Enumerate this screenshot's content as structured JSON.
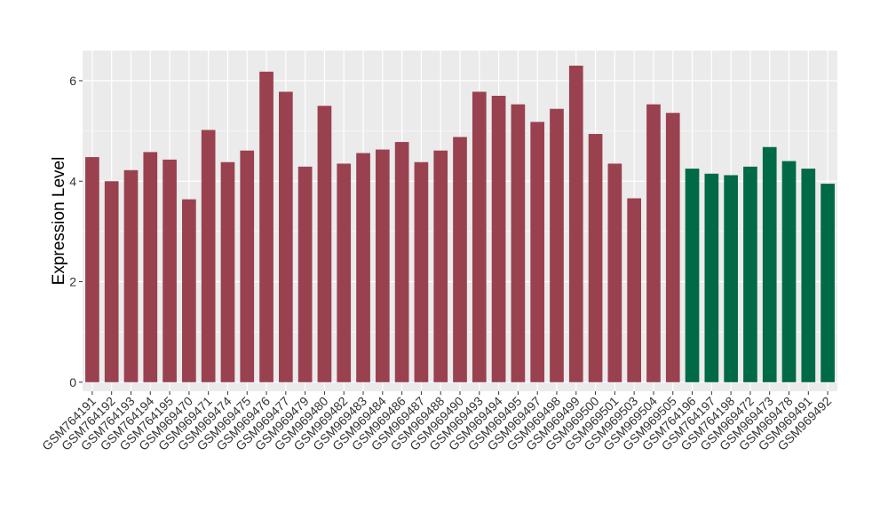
{
  "chart_data": {
    "type": "bar",
    "title": "",
    "xlabel": "",
    "ylabel": "Expression Level",
    "ylim": [
      -0.18,
      6.6
    ],
    "yticks": [
      0,
      2,
      4,
      6
    ],
    "grid": true,
    "legend": "none",
    "colors": {
      "series_a": "#9A4150",
      "series_b": "#006A46",
      "panel": "#EBEBEB",
      "gridline": "#FFFFFF"
    },
    "categories": [
      "GSM764191",
      "GSM764192",
      "GSM764193",
      "GSM764194",
      "GSM764195",
      "GSM969470",
      "GSM969471",
      "GSM969474",
      "GSM969475",
      "GSM969476",
      "GSM969477",
      "GSM969479",
      "GSM969480",
      "GSM969482",
      "GSM969483",
      "GSM969484",
      "GSM969486",
      "GSM969487",
      "GSM969488",
      "GSM969490",
      "GSM969493",
      "GSM969494",
      "GSM969495",
      "GSM969497",
      "GSM969498",
      "GSM969499",
      "GSM969500",
      "GSM969501",
      "GSM969503",
      "GSM969504",
      "GSM969505",
      "GSM764196",
      "GSM764197",
      "GSM764198",
      "GSM969472",
      "GSM969473",
      "GSM969478",
      "GSM969491",
      "GSM969492"
    ],
    "values": [
      4.48,
      4.0,
      4.22,
      4.58,
      4.43,
      3.64,
      5.02,
      4.38,
      4.61,
      6.18,
      5.78,
      4.29,
      5.5,
      4.35,
      4.56,
      4.63,
      4.78,
      4.38,
      4.61,
      4.88,
      5.78,
      5.7,
      5.53,
      5.18,
      5.44,
      6.3,
      4.94,
      4.35,
      3.66,
      5.53,
      5.36,
      4.25,
      4.15,
      4.12,
      4.29,
      4.68,
      4.4,
      4.25,
      3.95
    ],
    "groups": [
      "a",
      "a",
      "a",
      "a",
      "a",
      "a",
      "a",
      "a",
      "a",
      "a",
      "a",
      "a",
      "a",
      "a",
      "a",
      "a",
      "a",
      "a",
      "a",
      "a",
      "a",
      "a",
      "a",
      "a",
      "a",
      "a",
      "a",
      "a",
      "a",
      "a",
      "a",
      "b",
      "b",
      "b",
      "b",
      "b",
      "b",
      "b",
      "b"
    ]
  }
}
